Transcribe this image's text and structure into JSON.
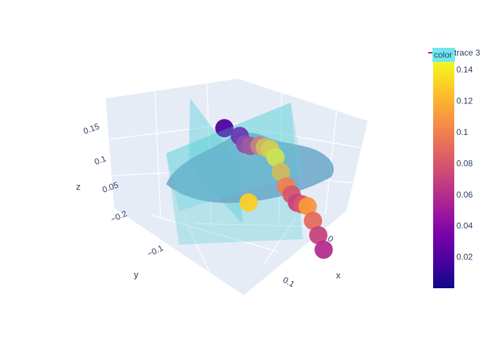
{
  "chart_data": {
    "type": "scatter3d",
    "title": "",
    "axes": {
      "x": {
        "label": "x",
        "ticks": [
          "0",
          "0.1"
        ]
      },
      "y": {
        "label": "y",
        "ticks": [
          "−0.2",
          "−0.1"
        ]
      },
      "z": {
        "label": "z",
        "ticks": [
          "0.05",
          "0.1",
          "0.15"
        ]
      }
    },
    "grid": true,
    "colorbar": {
      "title": "color",
      "colorscale": "plasma",
      "colors": [
        "#0d0887",
        "#46039f",
        "#7201a8",
        "#9c179e",
        "#bd3786",
        "#d8576b",
        "#ed7953",
        "#fb9f3a",
        "#fdca26",
        "#f0f921"
      ],
      "range": [
        0.0,
        0.145
      ],
      "ticks": [
        0.02,
        0.04,
        0.06,
        0.08,
        0.1,
        0.12,
        0.14
      ],
      "tick_labels": [
        "0.02",
        "0.04",
        "0.06",
        "0.08",
        "0.1",
        "0.12",
        "0.14"
      ]
    },
    "planes": [
      {
        "name": "",
        "orientation": "x",
        "color": "#5fd0d8",
        "opacity": 0.5
      },
      {
        "name": "",
        "orientation": "y",
        "color": "#5fd0d8",
        "opacity": 0.5
      }
    ],
    "surface": {
      "color": "#6aa7c8",
      "opacity": 0.85
    },
    "legend": {
      "entries": [
        "trace 3"
      ],
      "placement": "top-right"
    },
    "points": [
      [
        -0.15,
        -0.18,
        0.06,
        0.02
      ],
      [
        -0.12,
        -0.17,
        0.06,
        0.03
      ],
      [
        -0.1,
        -0.15,
        0.06,
        0.05
      ],
      [
        -0.08,
        -0.13,
        0.07,
        0.06
      ],
      [
        -0.06,
        -0.12,
        0.08,
        0.09
      ],
      [
        -0.04,
        -0.1,
        0.09,
        0.12
      ],
      [
        -0.02,
        -0.08,
        0.1,
        0.13
      ],
      [
        0.0,
        -0.06,
        0.1,
        0.14
      ],
      [
        0.02,
        -0.04,
        0.09,
        0.12
      ],
      [
        0.04,
        -0.02,
        0.08,
        0.1
      ],
      [
        0.06,
        0.0,
        0.08,
        0.08
      ],
      [
        0.08,
        0.02,
        0.08,
        0.07
      ],
      [
        0.1,
        0.04,
        0.09,
        0.08
      ],
      [
        0.12,
        0.06,
        0.1,
        0.11
      ],
      [
        0.14,
        0.08,
        0.09,
        0.09
      ],
      [
        0.16,
        0.1,
        0.08,
        0.07
      ],
      [
        0.18,
        0.12,
        0.07,
        0.06
      ],
      [
        0.05,
        0.1,
        0.1,
        0.13
      ]
    ]
  }
}
